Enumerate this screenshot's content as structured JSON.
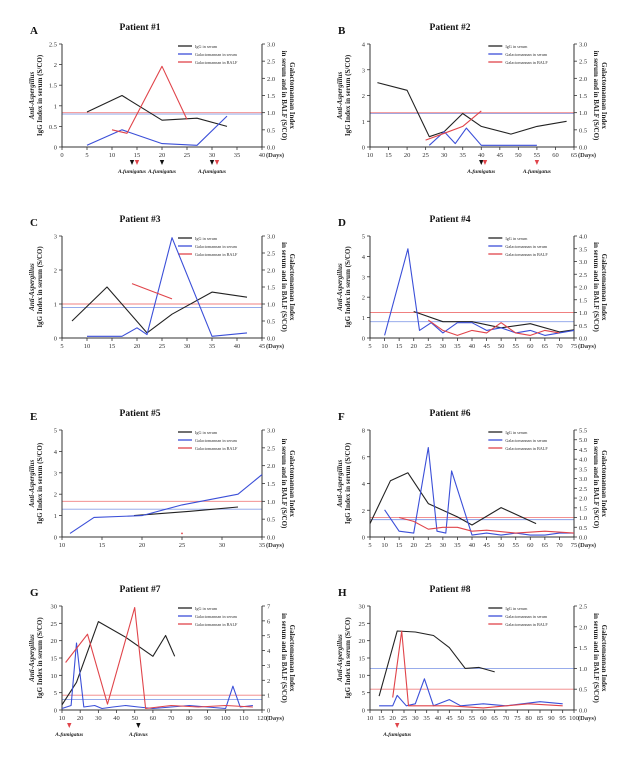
{
  "figure": {
    "legend_labels": [
      "IgG in serum",
      "Galactomannan in serum",
      "Galactomannan in BALF"
    ],
    "y_left_label": [
      "Anti-Aspergillus",
      "IgG Index in serum (S/CO)"
    ],
    "y_right_label": [
      "Galactomannan Index",
      "in serum and in BALF (S/CO)"
    ],
    "x_unit": "(Days)",
    "colors": {
      "igg": "#222222",
      "gm_serum": "#3b4fd8",
      "gm_balf": "#e0444a",
      "cutoff_red": "#f08080",
      "cutoff_blue": "#8aa0e8"
    }
  },
  "chart_data": [
    {
      "type": "line",
      "panel": "A",
      "title": "Patient #1",
      "xlim": [
        0,
        40
      ],
      "xticks": [
        0,
        5,
        10,
        15,
        20,
        25,
        30,
        35,
        40
      ],
      "ylim_left": [
        0,
        2.5
      ],
      "yticks_left": [
        0,
        0.5,
        1.0,
        1.5,
        2.0,
        2.5
      ],
      "ylim_right": [
        0,
        3.0
      ],
      "yticks_right": [
        0,
        0.5,
        1.0,
        1.5,
        2.0,
        2.5,
        3.0
      ],
      "cutoff_left": 0.8,
      "cutoff_right": 1.0,
      "series": [
        {
          "name": "IgG in serum",
          "axis": "left",
          "x": [
            5,
            12,
            20,
            27,
            33
          ],
          "y": [
            0.85,
            1.25,
            0.65,
            0.7,
            0.5
          ]
        },
        {
          "name": "Galactomannan in serum",
          "axis": "right",
          "x": [
            5,
            12,
            20,
            27,
            33
          ],
          "y": [
            0.05,
            0.5,
            0.1,
            0.05,
            0.9
          ]
        },
        {
          "name": "Galactomannan in BALF",
          "axis": "right",
          "x": [
            10,
            13,
            20,
            25
          ],
          "y": [
            0.5,
            0.4,
            2.35,
            0.8
          ]
        }
      ],
      "annotations": [
        {
          "x": 14,
          "label": "A.fumigatus",
          "color": "black"
        },
        {
          "x": 15,
          "label": "",
          "color": "red"
        },
        {
          "x": 20,
          "label": "A.fumigatus",
          "color": "black"
        },
        {
          "x": 30,
          "label": "A.fumigatus",
          "color": "black"
        },
        {
          "x": 31,
          "label": "",
          "color": "red"
        }
      ]
    },
    {
      "type": "line",
      "panel": "B",
      "title": "Patient #2",
      "xlim": [
        10,
        65
      ],
      "xticks": [
        10,
        15,
        20,
        25,
        30,
        35,
        40,
        45,
        50,
        55,
        60,
        65
      ],
      "ylim_left": [
        0,
        4
      ],
      "yticks_left": [
        0,
        1,
        2,
        3,
        4
      ],
      "ylim_right": [
        0,
        3.0
      ],
      "yticks_right": [
        0,
        0.5,
        1.0,
        1.5,
        2.0,
        2.5,
        3.0
      ],
      "cutoff_left": 1.3,
      "cutoff_right": 1.0,
      "series": [
        {
          "name": "IgG in serum",
          "axis": "left",
          "x": [
            12,
            20,
            26,
            30,
            35,
            40,
            48,
            55,
            63
          ],
          "y": [
            2.5,
            2.2,
            0.4,
            0.6,
            1.3,
            0.8,
            0.5,
            0.8,
            1.0
          ]
        },
        {
          "name": "Galactomannan in serum",
          "axis": "right",
          "x": [
            26,
            30,
            33,
            36,
            40,
            48,
            55
          ],
          "y": [
            0.05,
            0.45,
            0.1,
            0.55,
            0.05,
            0.05,
            0.05
          ]
        },
        {
          "name": "Galactomannan in BALF",
          "axis": "right",
          "x": [
            25,
            30,
            35,
            40
          ],
          "y": [
            0.2,
            0.4,
            0.6,
            1.05
          ]
        }
      ],
      "annotations": [
        {
          "x": 40,
          "label": "A.fumigatus",
          "color": "black"
        },
        {
          "x": 41,
          "label": "",
          "color": "red"
        },
        {
          "x": 55,
          "label": "A.fumigatus",
          "color": "red"
        }
      ]
    },
    {
      "type": "line",
      "panel": "C",
      "title": "Patient #3",
      "xlim": [
        5,
        45
      ],
      "xticks": [
        5,
        10,
        15,
        20,
        25,
        30,
        35,
        40,
        45
      ],
      "ylim_left": [
        0,
        3
      ],
      "yticks_left": [
        0,
        1,
        2,
        3
      ],
      "ylim_right": [
        0,
        3.0
      ],
      "yticks_right": [
        0,
        0.5,
        1.0,
        1.5,
        2.0,
        2.5,
        3.0
      ],
      "cutoff_left": 0.9,
      "cutoff_right": 1.0,
      "series": [
        {
          "name": "IgG in serum",
          "axis": "left",
          "x": [
            7,
            14,
            22,
            27,
            35,
            42
          ],
          "y": [
            0.5,
            1.5,
            0.15,
            0.7,
            1.35,
            1.2
          ]
        },
        {
          "name": "Galactomannan in serum",
          "axis": "right",
          "x": [
            10,
            17,
            20,
            22,
            27,
            35,
            42
          ],
          "y": [
            0.05,
            0.05,
            0.3,
            0.1,
            2.95,
            0.05,
            0.15
          ]
        },
        {
          "name": "Galactomannan in BALF",
          "axis": "right",
          "x": [
            19,
            27
          ],
          "y": [
            1.6,
            1.15
          ]
        }
      ],
      "annotations": []
    },
    {
      "type": "line",
      "panel": "D",
      "title": "Patient #4",
      "xlim": [
        5,
        75
      ],
      "xticks": [
        5,
        10,
        15,
        20,
        25,
        30,
        35,
        40,
        45,
        50,
        55,
        60,
        65,
        70,
        75
      ],
      "ylim_left": [
        0,
        5
      ],
      "yticks_left": [
        0,
        1,
        2,
        3,
        4,
        5
      ],
      "ylim_right": [
        0,
        4.0
      ],
      "yticks_right": [
        0,
        0.5,
        1.0,
        1.5,
        2.0,
        2.5,
        3.0,
        3.5,
        4.0
      ],
      "cutoff_left": 0.8,
      "cutoff_right": 1.0,
      "series": [
        {
          "name": "IgG in serum",
          "axis": "left",
          "x": [
            20,
            30,
            40,
            50,
            60,
            70,
            75
          ],
          "y": [
            1.3,
            0.8,
            0.8,
            0.5,
            0.7,
            0.3,
            0.4
          ]
        },
        {
          "name": "Galactomannan in serum",
          "axis": "right",
          "x": [
            10,
            18,
            22,
            26,
            30,
            35,
            40,
            45,
            50,
            55,
            60,
            65,
            70,
            75
          ],
          "y": [
            0.1,
            3.5,
            0.3,
            0.6,
            0.2,
            0.6,
            0.6,
            0.3,
            0.4,
            0.2,
            0.3,
            0.1,
            0.2,
            0.3
          ]
        },
        {
          "name": "Galactomannan in BALF",
          "axis": "right",
          "x": [
            25,
            30,
            35,
            40,
            45,
            50,
            55,
            60,
            65,
            70
          ],
          "y": [
            0.7,
            0.3,
            0.1,
            0.3,
            0.2,
            0.6,
            0.2,
            0.1,
            0.3,
            0.2
          ]
        }
      ],
      "annotations": []
    },
    {
      "type": "line",
      "panel": "E",
      "title": "Patient #5",
      "xlim": [
        10,
        35
      ],
      "xticks": [
        10,
        15,
        20,
        25,
        30,
        35
      ],
      "ylim_left": [
        0,
        5
      ],
      "yticks_left": [
        0,
        1,
        2,
        3,
        4,
        5
      ],
      "ylim_right": [
        0,
        3.0
      ],
      "yticks_right": [
        0,
        0.5,
        1.0,
        1.5,
        2.0,
        2.5,
        3.0
      ],
      "cutoff_left": 1.3,
      "cutoff_right": 1.0,
      "series": [
        {
          "name": "IgG in serum",
          "axis": "left",
          "x": [
            19,
            26,
            32
          ],
          "y": [
            1.0,
            1.2,
            1.4
          ]
        },
        {
          "name": "Galactomannan in serum",
          "axis": "right",
          "x": [
            11,
            14,
            20,
            25,
            32,
            35
          ],
          "y": [
            0.1,
            0.55,
            0.6,
            0.9,
            1.2,
            1.75
          ]
        },
        {
          "name": "Galactomannan in BALF",
          "axis": "right",
          "x": [
            25
          ],
          "y": [
            0.1
          ]
        }
      ],
      "annotations": []
    },
    {
      "type": "line",
      "panel": "F",
      "title": "Patient #6",
      "xlim": [
        5,
        75
      ],
      "xticks": [
        5,
        10,
        15,
        20,
        25,
        30,
        35,
        40,
        45,
        50,
        55,
        60,
        65,
        70,
        75
      ],
      "ylim_left": [
        0,
        8
      ],
      "yticks_left": [
        0,
        2,
        4,
        6,
        8
      ],
      "ylim_right": [
        0,
        5.5
      ],
      "yticks_right": [
        0,
        0.5,
        1.0,
        1.5,
        2.0,
        2.5,
        3.0,
        3.5,
        4.0,
        4.5,
        5.0,
        5.5
      ],
      "cutoff_left": 1.3,
      "cutoff_right": 1.0,
      "series": [
        {
          "name": "IgG in serum",
          "axis": "left",
          "x": [
            5,
            12,
            18,
            25,
            35,
            40,
            50,
            62
          ],
          "y": [
            1.0,
            4.2,
            4.8,
            2.5,
            1.5,
            0.9,
            2.2,
            1.0
          ]
        },
        {
          "name": "Galactomannan in serum",
          "axis": "right",
          "x": [
            10,
            15,
            20,
            25,
            28,
            31,
            33,
            40,
            45,
            50,
            55,
            60,
            65,
            70,
            75
          ],
          "y": [
            1.4,
            0.3,
            0.2,
            4.6,
            0.3,
            0.2,
            3.4,
            0.1,
            0.2,
            0.1,
            0.2,
            0.1,
            0.1,
            0.2,
            0.2
          ]
        },
        {
          "name": "Galactomannan in BALF",
          "axis": "right",
          "x": [
            15,
            20,
            25,
            30,
            35,
            40,
            45,
            55,
            65,
            75
          ],
          "y": [
            1.0,
            0.8,
            0.4,
            0.5,
            0.5,
            0.3,
            0.35,
            0.2,
            0.3,
            0.2
          ]
        }
      ],
      "annotations": []
    },
    {
      "type": "line",
      "panel": "G",
      "title": "Patient #7",
      "xlim": [
        10,
        120
      ],
      "xticks": [
        10,
        20,
        30,
        40,
        50,
        60,
        70,
        80,
        90,
        100,
        110,
        120
      ],
      "ylim_left": [
        0,
        30
      ],
      "yticks_left": [
        0,
        5,
        10,
        15,
        20,
        25,
        30
      ],
      "ylim_right": [
        0,
        7
      ],
      "yticks_right": [
        0,
        1,
        2,
        3,
        4,
        5,
        6,
        7
      ],
      "cutoff_left": 3.0,
      "cutoff_right": 1.0,
      "series": [
        {
          "name": "IgG in serum",
          "axis": "left",
          "x": [
            10,
            18,
            30,
            45,
            60,
            67,
            72
          ],
          "y": [
            1.5,
            8,
            25.5,
            21,
            15.5,
            21.5,
            15.5
          ]
        },
        {
          "name": "Galactomannan in serum",
          "axis": "right",
          "x": [
            10,
            15,
            18,
            22,
            28,
            32,
            38,
            45,
            52,
            60,
            70,
            80,
            90,
            100,
            104,
            108,
            115
          ],
          "y": [
            0.1,
            0.3,
            4.5,
            0.2,
            0.3,
            0.1,
            0.2,
            0.3,
            0.2,
            0.1,
            0.2,
            0.3,
            0.2,
            0.1,
            1.6,
            0.2,
            0.3
          ]
        },
        {
          "name": "Galactomannan in BALF",
          "axis": "right",
          "x": [
            12,
            24,
            35,
            50,
            56,
            70,
            85,
            100,
            115
          ],
          "y": [
            3.2,
            5.1,
            0.4,
            6.9,
            0.1,
            0.3,
            0.2,
            0.3,
            0.2
          ]
        }
      ],
      "annotations": [
        {
          "x": 14,
          "label": "A.fumigatus",
          "color": "red"
        },
        {
          "x": 52,
          "label": "A.flavus",
          "color": "black"
        }
      ]
    },
    {
      "type": "line",
      "panel": "H",
      "title": "Patient #8",
      "xlim": [
        10,
        100
      ],
      "xticks": [
        10,
        15,
        20,
        25,
        30,
        35,
        40,
        45,
        50,
        55,
        60,
        65,
        70,
        75,
        80,
        85,
        90,
        95,
        100
      ],
      "ylim_left": [
        0,
        30
      ],
      "yticks_left": [
        0,
        5,
        10,
        15,
        20,
        25,
        30
      ],
      "ylim_right": [
        0,
        2.5
      ],
      "yticks_right": [
        0,
        0.5,
        1.0,
        1.5,
        2.0,
        2.5
      ],
      "cutoff_left": 12.0,
      "cutoff_right": 0.5,
      "series": [
        {
          "name": "IgG in serum",
          "axis": "left",
          "x": [
            14,
            22,
            30,
            38,
            45,
            52,
            58,
            65
          ],
          "y": [
            4,
            22.8,
            22.5,
            21.5,
            18,
            12,
            12.3,
            11
          ]
        },
        {
          "name": "Galactomannan in serum",
          "axis": "right",
          "x": [
            14,
            20,
            22,
            26,
            30,
            34,
            38,
            45,
            50,
            60,
            70,
            85,
            95
          ],
          "y": [
            0.1,
            0.1,
            0.35,
            0.1,
            0.15,
            0.75,
            0.1,
            0.25,
            0.1,
            0.15,
            0.1,
            0.2,
            0.15
          ]
        },
        {
          "name": "Galactomannan in BALF",
          "axis": "right",
          "x": [
            20,
            24,
            27,
            35,
            45,
            60,
            80,
            95
          ],
          "y": [
            0.3,
            1.9,
            0.1,
            0.1,
            0.1,
            0.05,
            0.15,
            0.1
          ]
        }
      ],
      "annotations": [
        {
          "x": 22,
          "label": "A.fumigatus",
          "color": "red"
        }
      ]
    }
  ]
}
